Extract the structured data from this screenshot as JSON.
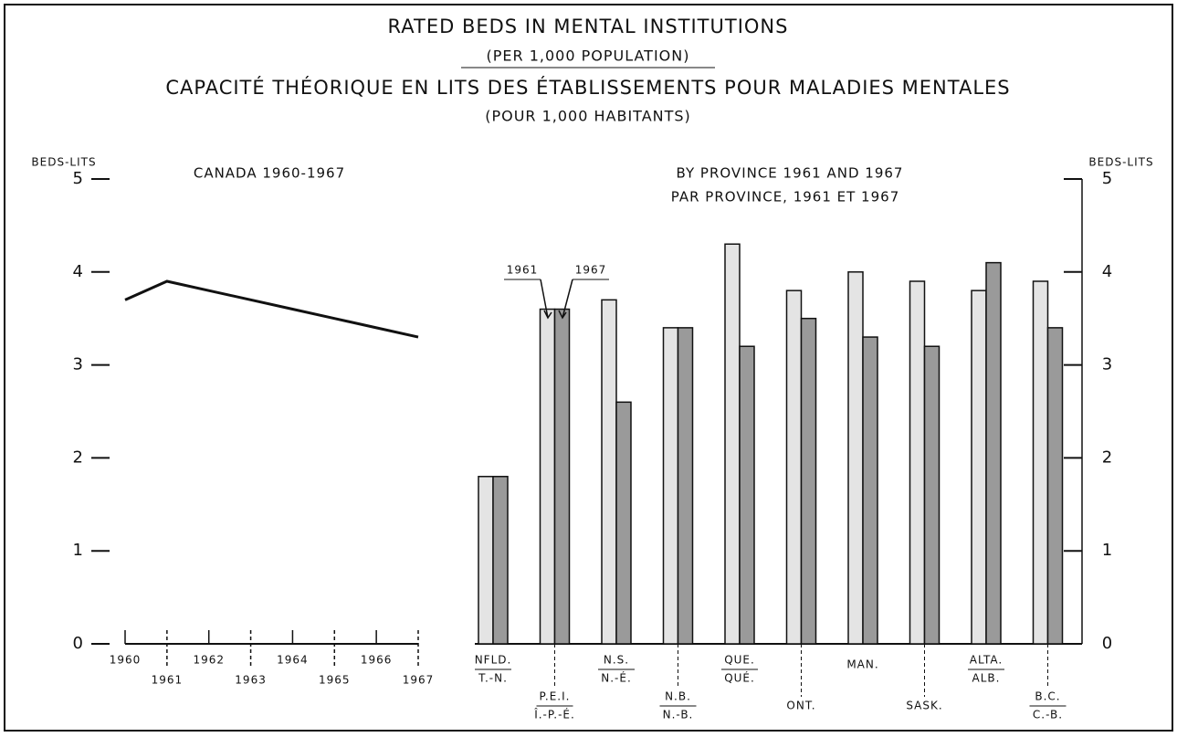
{
  "header": {
    "title": "RATED BEDS IN MENTAL INSTITUTIONS",
    "subtitle": "(PER 1,000 POPULATION)",
    "title_fr": "CAPACITÉ THÉORIQUE EN LITS DES ÉTABLISSEMENTS POUR MALADIES MENTALES",
    "subtitle_fr": "(POUR 1,000 HABITANTS)"
  },
  "chart_data": [
    {
      "type": "line",
      "title": "CANADA 1960-1967",
      "y_label": "BEDS-LITS",
      "x": [
        1960,
        1961,
        1962,
        1963,
        1964,
        1965,
        1966,
        1967
      ],
      "values": [
        3.7,
        3.9,
        3.8,
        3.7,
        3.6,
        3.5,
        3.4,
        3.3
      ],
      "color": "#111111",
      "xlim": [
        1960,
        1967
      ],
      "xticks": [
        1960,
        1961,
        1962,
        1963,
        1964,
        1965,
        1966,
        1967
      ],
      "ylim": [
        0,
        5
      ],
      "yticks": [
        0,
        1,
        2,
        3,
        4,
        5
      ],
      "grid": false
    },
    {
      "type": "bar",
      "title": "BY PROVINCE 1961 AND 1967",
      "subtitle": "PAR PROVINCE, 1961 ET 1967",
      "y_label": "BEDS-LITS",
      "categories": [
        "NFLD.",
        "P.E.I.",
        "N.S.",
        "N.B.",
        "QUE.",
        "ONT.",
        "MAN.",
        "SASK.",
        "ALTA.",
        "B.C."
      ],
      "categories_fr": [
        "T.-N.",
        "Î.-P.-É.",
        "N.-É.",
        "N.-B.",
        "QUÉ.",
        null,
        null,
        null,
        "ALB.",
        "C.-B."
      ],
      "series": [
        {
          "name": "1961",
          "color": "#e4e4e4",
          "values": [
            1.8,
            3.6,
            3.7,
            3.4,
            4.3,
            3.8,
            4.0,
            3.9,
            3.8,
            3.9
          ],
          "axis": "y2"
        },
        {
          "name": "1967",
          "color": "#9a9a9a",
          "values": [
            1.8,
            3.6,
            2.6,
            3.4,
            3.2,
            3.5,
            3.3,
            3.2,
            4.1,
            3.4
          ],
          "axis": "y2"
        }
      ],
      "y2lim": [
        0,
        5
      ],
      "y2ticks": [
        0,
        1,
        2,
        3,
        4,
        5
      ],
      "grid": false
    }
  ]
}
